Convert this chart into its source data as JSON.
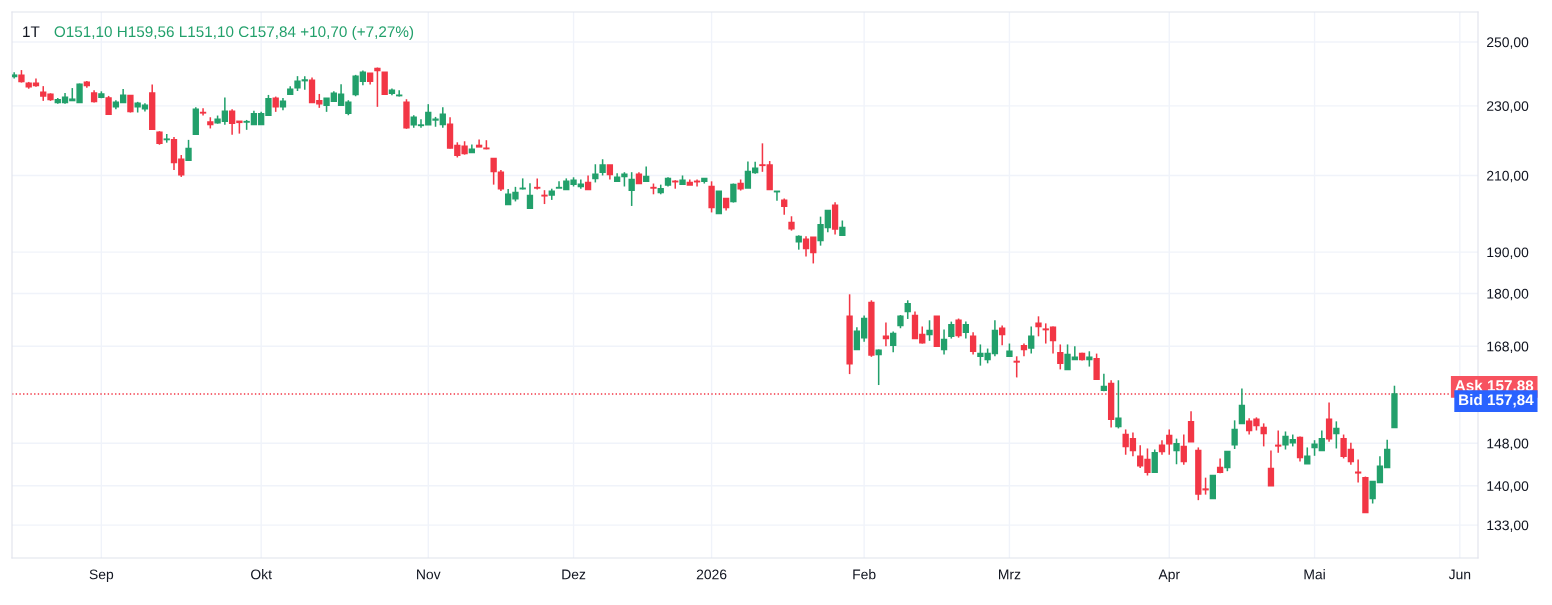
{
  "chart_data": {
    "type": "candlestick",
    "title": "1T",
    "subtitle": "O151,10 H159,56 L151,10 C157,84 +10,70 (+7,27%)",
    "categories": [
      null,
      null,
      null,
      null,
      null,
      null,
      null,
      null,
      null,
      null,
      null,
      null,
      "Sep",
      null,
      null,
      null,
      null,
      null,
      null,
      null,
      null,
      null,
      null,
      null,
      null,
      null,
      null,
      null,
      null,
      null,
      null,
      null,
      null,
      null,
      "Okt",
      null,
      null,
      null,
      null,
      null,
      null,
      null,
      null,
      null,
      null,
      null,
      null,
      null,
      null,
      null,
      null,
      null,
      null,
      null,
      null,
      null,
      null,
      "Nov",
      null,
      null,
      null,
      null,
      null,
      null,
      null,
      null,
      null,
      null,
      null,
      null,
      null,
      null,
      null,
      null,
      null,
      null,
      null,
      "Dez",
      null,
      null,
      null,
      null,
      null,
      null,
      null,
      null,
      null,
      null,
      null,
      null,
      null,
      null,
      null,
      null,
      null,
      null,
      "2026",
      null,
      null,
      null,
      null,
      null,
      null,
      null,
      null,
      null,
      null,
      null,
      null,
      null,
      null,
      null,
      null,
      null,
      null,
      null,
      null,
      "Feb",
      null,
      null,
      null,
      null,
      null,
      null,
      null,
      null,
      null,
      null,
      null,
      null,
      null,
      null,
      null,
      null,
      null,
      null,
      null,
      "Mrz",
      null,
      null,
      null,
      null,
      null,
      null,
      null,
      null,
      null,
      null,
      null,
      null,
      null,
      null,
      null,
      null,
      null,
      null,
      null,
      null,
      null,
      "Apr",
      null,
      null,
      null,
      null,
      null,
      null,
      null,
      null,
      null,
      null,
      null,
      null,
      null,
      null,
      null,
      null,
      null,
      null,
      null,
      "Mai",
      null,
      null,
      null,
      null,
      null,
      null,
      null,
      null,
      null,
      null,
      null,
      null,
      null,
      null,
      null,
      null,
      null,
      null,
      null,
      "Jun",
      null,
      null
    ],
    "ohlc": [
      [
        239.0,
        240.3,
        238.4,
        239.4
      ],
      [
        239.4,
        241.0,
        237.1,
        237.4
      ],
      [
        236.9,
        237.3,
        235.2,
        235.8
      ],
      [
        236.9,
        238.4,
        235.8,
        236.2
      ],
      [
        234.1,
        236.0,
        231.5,
        233.0
      ],
      [
        233.5,
        233.8,
        231.5,
        231.9
      ],
      [
        231.0,
        232.4,
        230.6,
        231.8
      ],
      [
        231.0,
        233.9,
        230.6,
        232.6
      ],
      [
        231.6,
        235.4,
        231.6,
        232.0
      ],
      [
        231.0,
        236.8,
        231.0,
        236.6
      ],
      [
        237.2,
        237.6,
        235.5,
        236.2
      ],
      [
        233.9,
        234.7,
        231.0,
        231.3
      ],
      [
        232.6,
        234.4,
        232.3,
        233.6
      ],
      [
        232.4,
        233.0,
        227.5,
        227.5
      ],
      [
        229.7,
        231.7,
        229.0,
        231.1
      ],
      [
        231.0,
        235.1,
        231.0,
        233.2
      ],
      [
        233.1,
        233.1,
        228.0,
        228.3
      ],
      [
        229.7,
        231.2,
        228.0,
        230.8
      ],
      [
        229.1,
        230.8,
        228.3,
        230.2
      ],
      [
        233.9,
        236.5,
        223.1,
        223.1
      ],
      [
        222.2,
        222.5,
        218.6,
        219.0
      ],
      [
        220.1,
        221.7,
        219.2,
        220.2
      ],
      [
        220.0,
        220.8,
        211.5,
        213.6
      ],
      [
        214.5,
        215.7,
        209.6,
        210.2
      ],
      [
        214.2,
        220.0,
        214.2,
        217.5
      ],
      [
        221.6,
        229.6,
        221.6,
        229.0
      ],
      [
        228.0,
        229.3,
        227.1,
        227.9
      ],
      [
        225.2,
        226.6,
        223.3,
        224.5
      ],
      [
        225.0,
        227.1,
        224.7,
        226.0
      ],
      [
        225.4,
        232.5,
        224.4,
        228.4
      ],
      [
        228.4,
        229.0,
        221.5,
        224.8
      ],
      [
        225.4,
        225.4,
        221.8,
        225.1
      ],
      [
        225.2,
        225.8,
        222.9,
        225.3
      ],
      [
        224.5,
        228.5,
        224.5,
        227.6
      ],
      [
        224.5,
        228.2,
        224.5,
        227.6
      ],
      [
        227.2,
        233.3,
        227.2,
        232.1
      ],
      [
        232.3,
        232.8,
        228.2,
        229.7
      ],
      [
        229.7,
        232.4,
        228.7,
        231.4
      ],
      [
        233.5,
        236.0,
        233.3,
        235.0
      ],
      [
        235.5,
        239.1,
        234.5,
        237.5
      ],
      [
        237.7,
        239.1,
        234.9,
        237.9
      ],
      [
        237.8,
        238.7,
        231.0,
        231.0
      ],
      [
        231.5,
        233.6,
        229.4,
        230.6
      ],
      [
        230.2,
        232.3,
        228.2,
        232.3
      ],
      [
        231.4,
        234.4,
        231.4,
        233.8
      ],
      [
        230.2,
        236.6,
        230.2,
        233.5
      ],
      [
        227.8,
        231.7,
        227.2,
        231.1
      ],
      [
        233.4,
        239.5,
        232.9,
        239.1
      ],
      [
        237.5,
        240.9,
        236.3,
        240.3
      ],
      [
        240.0,
        240.0,
        236.5,
        237.5
      ],
      [
        241.5,
        241.8,
        229.7,
        240.9
      ],
      [
        240.3,
        240.3,
        233.5,
        233.5
      ],
      [
        233.8,
        235.3,
        233.2,
        234.7
      ],
      [
        233.1,
        234.7,
        232.8,
        233.2
      ],
      [
        231.1,
        232.0,
        223.2,
        223.5
      ],
      [
        224.4,
        227.2,
        223.5,
        226.6
      ],
      [
        224.2,
        226.0,
        223.5,
        224.3
      ],
      [
        224.4,
        230.5,
        224.4,
        228.0
      ],
      [
        225.8,
        226.7,
        223.8,
        226.0
      ],
      [
        224.5,
        229.6,
        223.5,
        227.5
      ],
      [
        224.5,
        226.6,
        217.5,
        217.7
      ],
      [
        218.4,
        219.3,
        215.0,
        215.6
      ],
      [
        218.2,
        219.6,
        215.8,
        216.1
      ],
      [
        216.4,
        218.7,
        216.4,
        217.3
      ],
      [
        218.4,
        220.1,
        218.0,
        218.0
      ],
      [
        217.6,
        219.9,
        217.3,
        217.5
      ],
      [
        214.7,
        214.7,
        207.5,
        211.1
      ],
      [
        210.9,
        211.5,
        205.8,
        206.4
      ],
      [
        202.2,
        206.3,
        202.2,
        204.9
      ],
      [
        203.7,
        206.9,
        203.0,
        205.4
      ],
      [
        206.4,
        209.2,
        206.2,
        206.5
      ],
      [
        201.2,
        207.9,
        201.2,
        204.6
      ],
      [
        206.7,
        209.2,
        206.2,
        206.6
      ],
      [
        204.6,
        206.0,
        202.3,
        204.5
      ],
      [
        204.7,
        206.4,
        203.4,
        205.7
      ],
      [
        206.6,
        208.4,
        206.6,
        206.7
      ],
      [
        206.2,
        209.2,
        206.2,
        208.4
      ],
      [
        207.6,
        209.5,
        207.0,
        208.7
      ],
      [
        207.0,
        208.9,
        206.4,
        207.6
      ],
      [
        208.1,
        210.0,
        206.2,
        206.2
      ],
      [
        209.2,
        213.1,
        208.1,
        210.3
      ],
      [
        210.9,
        214.5,
        210.0,
        212.9
      ],
      [
        212.9,
        212.9,
        208.9,
        210.3
      ],
      [
        208.4,
        210.6,
        208.4,
        209.5
      ],
      [
        209.7,
        210.9,
        207.0,
        210.3
      ],
      [
        206.0,
        210.9,
        201.8,
        208.9
      ],
      [
        210.3,
        210.9,
        207.8,
        207.8
      ],
      [
        208.4,
        212.5,
        208.4,
        209.7
      ],
      [
        206.7,
        207.8,
        204.9,
        206.6
      ],
      [
        205.4,
        207.5,
        204.9,
        206.4
      ],
      [
        207.4,
        209.5,
        207.0,
        209.2
      ],
      [
        208.4,
        208.7,
        206.4,
        208.3
      ],
      [
        207.6,
        210.0,
        207.6,
        208.7
      ],
      [
        208.1,
        208.9,
        207.4,
        207.4
      ],
      [
        208.4,
        208.9,
        207.0,
        208.3
      ],
      [
        208.4,
        209.2,
        207.8,
        209.2
      ],
      [
        207.0,
        208.4,
        200.1,
        201.4
      ],
      [
        199.8,
        205.7,
        199.8,
        205.7
      ],
      [
        203.8,
        203.8,
        200.6,
        201.4
      ],
      [
        203.0,
        207.8,
        202.7,
        207.5
      ],
      [
        207.8,
        208.9,
        205.9,
        206.4
      ],
      [
        206.6,
        213.9,
        206.6,
        211.1
      ],
      [
        210.8,
        213.8,
        210.5,
        212.0
      ],
      [
        212.9,
        219.0,
        211.0,
        212.8
      ],
      [
        212.9,
        214.0,
        206.2,
        206.2
      ],
      [
        205.6,
        205.7,
        203.2,
        205.7
      ],
      [
        203.3,
        203.8,
        199.5,
        201.7
      ],
      [
        197.5,
        199.1,
        195.4,
        195.9
      ],
      [
        192.6,
        194.2,
        190.6,
        193.9
      ],
      [
        193.2,
        194.0,
        188.9,
        190.9
      ],
      [
        193.7,
        193.7,
        187.2,
        189.9
      ],
      [
        192.9,
        199.0,
        191.6,
        196.9
      ],
      [
        196.2,
        200.6,
        195.0,
        200.6
      ],
      [
        202.0,
        202.8,
        194.4,
        195.8
      ],
      [
        194.2,
        198.0,
        194.2,
        196.2
      ],
      [
        174.7,
        179.8,
        162.0,
        164.2
      ],
      [
        167.3,
        172.2,
        167.3,
        171.3
      ],
      [
        169.9,
        174.9,
        169.0,
        174.2
      ],
      [
        177.9,
        178.4,
        165.7,
        166.1
      ],
      [
        166.2,
        167.3,
        159.7,
        167.1
      ],
      [
        170.2,
        173.3,
        168.0,
        169.7
      ],
      [
        168.2,
        171.3,
        166.7,
        170.8
      ],
      [
        172.6,
        175.0,
        172.0,
        174.7
      ],
      [
        175.8,
        178.4,
        174.1,
        177.6
      ],
      [
        174.9,
        175.8,
        169.7,
        169.7
      ],
      [
        170.6,
        172.4,
        168.6,
        168.8
      ],
      [
        170.6,
        173.8,
        169.2,
        171.5
      ],
      [
        174.7,
        174.7,
        168.0,
        168.0
      ],
      [
        167.3,
        171.7,
        166.2,
        169.5
      ],
      [
        170.2,
        173.5,
        169.7,
        172.8
      ],
      [
        173.8,
        174.2,
        169.9,
        170.4
      ],
      [
        171.1,
        173.5,
        169.7,
        172.8
      ],
      [
        170.2,
        171.1,
        166.2,
        166.9
      ],
      [
        165.8,
        168.4,
        163.8,
        166.4
      ],
      [
        165.1,
        167.5,
        164.3,
        166.4
      ],
      [
        166.4,
        173.8,
        165.8,
        171.5
      ],
      [
        172.0,
        172.6,
        168.2,
        170.6
      ],
      [
        165.8,
        168.6,
        165.8,
        166.9
      ],
      [
        164.7,
        165.8,
        161.3,
        164.6
      ],
      [
        168.1,
        168.6,
        165.8,
        167.3
      ],
      [
        167.6,
        172.4,
        166.4,
        170.2
      ],
      [
        173.1,
        174.7,
        170.2,
        172.4
      ],
      [
        171.8,
        173.1,
        168.6,
        171.7
      ],
      [
        172.2,
        172.4,
        166.4,
        169.3
      ],
      [
        166.6,
        168.4,
        163.0,
        164.3
      ],
      [
        163.0,
        168.4,
        163.0,
        166.2
      ],
      [
        165.1,
        168.0,
        165.1,
        165.6
      ],
      [
        166.4,
        166.6,
        164.9,
        165.1
      ],
      [
        165.1,
        166.9,
        163.6,
        165.6
      ],
      [
        165.3,
        166.4,
        160.9,
        160.9
      ],
      [
        158.6,
        162.1,
        158.4,
        159.4
      ],
      [
        160.0,
        160.7,
        151.1,
        152.7
      ],
      [
        151.3,
        160.7,
        150.9,
        152.9
      ],
      [
        149.7,
        150.7,
        145.8,
        147.4
      ],
      [
        148.9,
        150.1,
        145.5,
        146.6
      ],
      [
        145.5,
        147.6,
        143.3,
        143.7
      ],
      [
        144.9,
        147.0,
        141.9,
        142.5
      ],
      [
        142.5,
        146.8,
        142.5,
        146.2
      ],
      [
        147.6,
        148.6,
        145.8,
        146.4
      ],
      [
        149.5,
        150.7,
        145.8,
        147.9
      ],
      [
        146.6,
        148.9,
        144.0,
        147.9
      ],
      [
        147.4,
        149.7,
        143.9,
        144.5
      ],
      [
        152.2,
        154.3,
        148.3,
        148.3
      ],
      [
        146.6,
        147.2,
        137.4,
        138.5
      ],
      [
        139.4,
        141.5,
        138.4,
        139.3
      ],
      [
        137.7,
        141.9,
        137.7,
        141.9
      ],
      [
        143.4,
        145.1,
        142.3,
        142.5
      ],
      [
        143.4,
        146.4,
        142.7,
        146.4
      ],
      [
        147.7,
        152.5,
        146.9,
        150.7
      ],
      [
        151.9,
        159.0,
        151.9,
        155.5
      ],
      [
        152.3,
        152.9,
        149.7,
        150.5
      ],
      [
        152.7,
        153.1,
        150.5,
        151.5
      ],
      [
        151.1,
        151.9,
        147.4,
        149.9
      ],
      [
        143.2,
        146.6,
        140.0,
        140.0
      ],
      [
        147.6,
        150.5,
        146.2,
        147.5
      ],
      [
        147.7,
        150.3,
        146.8,
        149.3
      ],
      [
        148.1,
        149.7,
        147.4,
        148.7
      ],
      [
        149.1,
        149.3,
        144.5,
        145.3
      ],
      [
        144.1,
        147.2,
        144.1,
        145.5
      ],
      [
        147.2,
        148.6,
        145.6,
        147.8
      ],
      [
        146.6,
        150.5,
        146.6,
        148.9
      ],
      [
        152.7,
        156.1,
        148.3,
        148.9
      ],
      [
        149.9,
        152.3,
        147.0,
        150.9
      ],
      [
        148.9,
        149.7,
        145.1,
        145.5
      ],
      [
        146.8,
        148.1,
        143.9,
        144.5
      ],
      [
        142.5,
        144.9,
        140.6,
        142.4
      ],
      [
        141.5,
        141.7,
        135.2,
        135.2
      ],
      [
        137.7,
        140.8,
        136.8,
        140.8
      ],
      [
        140.6,
        145.5,
        140.6,
        143.6
      ],
      [
        143.4,
        148.7,
        143.4,
        146.8
      ],
      [
        151.1,
        159.56,
        151.1,
        157.84
      ],
      null,
      null,
      null,
      null,
      null,
      null,
      null,
      null,
      null,
      null,
      null
    ],
    "colors": [
      "#22a06b",
      "#f23645",
      "#f23645",
      "#f23645",
      "#f23645",
      "#f23645",
      "#22a06b",
      "#22a06b",
      "#22a06b",
      "#22a06b",
      "#f23645",
      "#f23645",
      "#22a06b",
      "#f23645",
      "#22a06b",
      "#22a06b",
      "#f23645",
      "#22a06b",
      "#22a06b",
      "#f23645",
      "#f23645",
      "#22a06b",
      "#f23645",
      "#f23645",
      "#22a06b",
      "#22a06b",
      "#f23645",
      "#f23645",
      "#22a06b",
      "#22a06b",
      "#f23645",
      "#f23645",
      "#22a06b",
      "#22a06b",
      "#22a06b",
      "#22a06b",
      "#f23645",
      "#22a06b",
      "#22a06b",
      "#22a06b",
      "#22a06b",
      "#f23645",
      "#f23645",
      "#22a06b",
      "#22a06b",
      "#22a06b",
      "#22a06b",
      "#22a06b",
      "#22a06b",
      "#f23645",
      "#f23645",
      "#f23645",
      "#22a06b",
      "#22a06b",
      "#f23645",
      "#22a06b",
      "#22a06b",
      "#22a06b",
      "#22a06b",
      "#22a06b",
      "#f23645",
      "#f23645",
      "#f23645",
      "#22a06b",
      "#f23645",
      "#f23645",
      "#f23645",
      "#f23645",
      "#22a06b",
      "#22a06b",
      "#22a06b",
      "#22a06b",
      "#f23645",
      "#f23645",
      "#22a06b",
      "#22a06b",
      "#22a06b",
      "#22a06b",
      "#22a06b",
      "#f23645",
      "#22a06b",
      "#22a06b",
      "#f23645",
      "#22a06b",
      "#22a06b",
      "#22a06b",
      "#f23645",
      "#22a06b",
      "#f23645",
      "#22a06b",
      "#22a06b",
      "#f23645",
      "#22a06b",
      "#f23645",
      "#f23645",
      "#22a06b",
      "#f23645",
      "#22a06b",
      "#f23645",
      "#22a06b",
      "#f23645",
      "#22a06b",
      "#22a06b",
      "#f23645",
      "#f23645",
      "#22a06b",
      "#f23645",
      "#f23645",
      "#22a06b",
      "#f23645",
      "#f23645",
      "#22a06b",
      "#22a06b",
      "#f23645",
      "#22a06b",
      "#f23645",
      "#22a06b",
      "#22a06b",
      "#f23645",
      "#22a06b",
      "#f23645",
      "#22a06b",
      "#22a06b",
      "#22a06b",
      "#f23645",
      "#f23645",
      "#22a06b",
      "#f23645",
      "#22a06b",
      "#22a06b",
      "#f23645",
      "#22a06b",
      "#f23645",
      "#22a06b",
      "#22a06b",
      "#22a06b",
      "#f23645",
      "#22a06b",
      "#f23645",
      "#f23645",
      "#22a06b",
      "#f23645",
      "#f23645",
      "#f23645",
      "#f23645",
      "#22a06b",
      "#22a06b",
      "#f23645",
      "#22a06b",
      "#f23645",
      "#22a06b",
      "#f23645",
      "#22a06b",
      "#f23645",
      "#f23645",
      "#f23645",
      "#f23645",
      "#22a06b",
      "#f23645",
      "#f23645",
      "#22a06b",
      "#f23645",
      "#f23645",
      "#f23645",
      "#f23645",
      "#22a06b",
      "#f23645",
      "#22a06b",
      "#22a06b",
      "#22a06b",
      "#f23645",
      "#f23645",
      "#f23645",
      "#f23645",
      "#f23645",
      "#22a06b",
      "#22a06b",
      "#f23645",
      "#22a06b",
      "#22a06b",
      "#22a06b",
      "#f23645",
      "#22a06b",
      "#f23645",
      "#f23645",
      "#f23645",
      "#f23645",
      "#22a06b",
      "#22a06b",
      "#22a06b",
      "#22a06b",
      null,
      null,
      null,
      null,
      null,
      null,
      null,
      null,
      null,
      null,
      null
    ],
    "log": "y",
    "ylim": [
      127.4,
      260
    ],
    "yticks": [
      {
        "value": 133,
        "label": "133,00"
      },
      {
        "value": 140,
        "label": "140,00"
      },
      {
        "value": 148,
        "label": "148,00"
      },
      {
        "value": 168,
        "label": "168,00"
      },
      {
        "value": 180,
        "label": "180,00"
      },
      {
        "value": 190,
        "label": "190,00"
      },
      {
        "value": 210,
        "label": "210,00"
      },
      {
        "value": 230,
        "label": "230,00"
      },
      {
        "value": 250,
        "label": "250,00"
      }
    ],
    "grid": true,
    "ref_lines": [
      {
        "axis": "y",
        "value": 157.84,
        "color": "#f23645",
        "line_style": "dotted"
      }
    ],
    "annotations": [
      "Ask 157,88",
      "Bid 157,84"
    ]
  }
}
